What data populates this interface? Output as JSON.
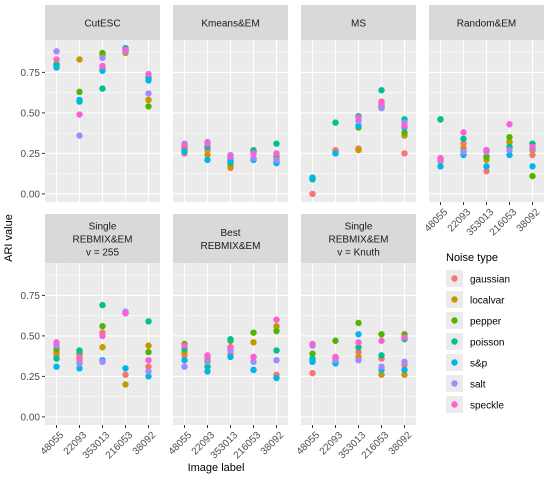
{
  "chart_data": {
    "type": "scatter",
    "layout": "faceted",
    "xlabel": "Image label",
    "ylabel": "ARI value",
    "categories": [
      "48055",
      "22093",
      "353013",
      "216053",
      "38092"
    ],
    "ylim": [
      0,
      1
    ],
    "yticks": [
      0.0,
      0.25,
      0.5,
      0.75
    ],
    "ytick_labels": [
      "0.00",
      "0.25",
      "0.50",
      "0.75"
    ],
    "grid": true,
    "legend": {
      "title": "Noise type",
      "placement": "right",
      "entries": [
        "gaussian",
        "localvar",
        "pepper",
        "poisson",
        "s&p",
        "salt",
        "speckle"
      ]
    },
    "colors": {
      "gaussian": "#F8766D",
      "localvar": "#C49A00",
      "pepper": "#53B400",
      "poisson": "#00C094",
      "s&p": "#00B6EB",
      "salt": "#A58AFF",
      "speckle": "#FB61D7",
      "panel_bg": "#EBEBEB",
      "strip_bg": "#D9D9D9",
      "grid": "#FFFFFF"
    },
    "facets": [
      {
        "title_lines": [
          "CutESC"
        ],
        "points": {
          "gaussian": [
            0.8,
            null,
            0.78,
            0.88,
            0.58
          ],
          "localvar": [
            null,
            0.83,
            0.86,
            0.87,
            0.58
          ],
          "pepper": [
            0.8,
            0.63,
            0.87,
            0.89,
            0.54
          ],
          "poisson": [
            0.79,
            0.57,
            0.65,
            0.9,
            0.72
          ],
          "s&p": [
            0.78,
            0.58,
            0.76,
            0.89,
            0.7
          ],
          "salt": [
            0.88,
            0.36,
            0.84,
            0.88,
            0.62
          ],
          "speckle": [
            0.83,
            0.49,
            0.79,
            0.89,
            0.74
          ]
        }
      },
      {
        "title_lines": [
          "Kmeans&EM"
        ],
        "points": {
          "gaussian": [
            0.25,
            0.27,
            0.16,
            0.21,
            0.2
          ],
          "localvar": [
            0.27,
            0.24,
            0.17,
            0.22,
            0.22
          ],
          "pepper": [
            0.29,
            0.29,
            0.19,
            0.26,
            0.23
          ],
          "poisson": [
            0.3,
            0.29,
            0.22,
            0.27,
            0.31
          ],
          "s&p": [
            0.26,
            0.21,
            0.2,
            0.21,
            0.19
          ],
          "salt": [
            0.31,
            0.32,
            0.24,
            0.22,
            0.21
          ],
          "speckle": [
            0.3,
            0.31,
            0.23,
            0.25,
            0.25
          ]
        }
      },
      {
        "title_lines": [
          "MS"
        ],
        "points": {
          "gaussian": [
            0.0,
            0.27,
            0.28,
            0.57,
            0.25
          ],
          "localvar": [
            null,
            null,
            0.27,
            0.55,
            0.36
          ],
          "pepper": [
            0.1,
            0.25,
            0.41,
            0.53,
            0.38
          ],
          "poisson": [
            0.09,
            0.44,
            0.48,
            0.64,
            0.46
          ],
          "s&p": [
            0.1,
            0.25,
            0.42,
            0.53,
            0.41
          ],
          "salt": [
            null,
            null,
            0.45,
            0.53,
            0.44
          ],
          "speckle": [
            null,
            null,
            0.47,
            0.56,
            0.42
          ]
        }
      },
      {
        "title_lines": [
          "Random&EM"
        ],
        "points": {
          "gaussian": [
            0.2,
            0.31,
            0.14,
            0.32,
            0.24
          ],
          "localvar": [
            0.22,
            0.28,
            0.21,
            0.32,
            0.27
          ],
          "pepper": [
            0.46,
            0.26,
            0.23,
            0.35,
            0.11
          ],
          "poisson": [
            0.46,
            0.34,
            0.27,
            0.29,
            0.31
          ],
          "s&p": [
            0.17,
            0.24,
            0.17,
            0.24,
            0.17
          ],
          "salt": [
            0.21,
            0.26,
            0.26,
            0.27,
            0.28
          ],
          "speckle": [
            0.22,
            0.38,
            0.27,
            0.43,
            0.29
          ]
        }
      },
      {
        "title_lines": [
          "Single",
          "REBMIX&EM",
          "v = 255"
        ],
        "points": {
          "gaussian": [
            0.38,
            0.36,
            0.52,
            0.26,
            0.31
          ],
          "localvar": [
            0.4,
            0.34,
            0.43,
            0.2,
            0.44
          ],
          "pepper": [
            0.42,
            0.39,
            0.56,
            0.64,
            0.4
          ],
          "poisson": [
            0.36,
            0.41,
            0.69,
            0.64,
            0.59
          ],
          "s&p": [
            0.31,
            0.3,
            0.35,
            0.3,
            0.25
          ],
          "salt": [
            0.44,
            0.33,
            0.34,
            0.65,
            0.28
          ],
          "speckle": [
            0.46,
            0.37,
            0.5,
            0.64,
            0.35
          ]
        }
      },
      {
        "title_lines": [
          "Best",
          "REBMIX&EM"
        ],
        "points": {
          "gaussian": [
            0.38,
            0.37,
            0.39,
            0.37,
            0.26
          ],
          "localvar": [
            0.4,
            0.35,
            0.43,
            0.46,
            0.56
          ],
          "pepper": [
            0.45,
            0.34,
            0.47,
            0.52,
            0.53
          ],
          "poisson": [
            0.42,
            0.31,
            0.48,
            0.29,
            0.41
          ],
          "s&p": [
            0.35,
            0.28,
            0.37,
            0.29,
            0.24
          ],
          "salt": [
            0.31,
            0.34,
            0.41,
            0.34,
            0.35
          ],
          "speckle": [
            0.44,
            0.38,
            0.43,
            0.37,
            0.6
          ]
        }
      },
      {
        "title_lines": [
          "Single",
          "REBMIX&EM",
          "v = Knuth"
        ],
        "points": {
          "gaussian": [
            0.27,
            0.37,
            0.4,
            0.36,
            0.32
          ],
          "localvar": [
            0.35,
            0.36,
            0.37,
            0.26,
            0.26
          ],
          "pepper": [
            0.39,
            0.47,
            0.58,
            0.51,
            0.51
          ],
          "poisson": [
            0.36,
            0.34,
            0.43,
            0.38,
            0.48
          ],
          "s&p": [
            0.34,
            0.33,
            0.51,
            0.29,
            0.29
          ],
          "salt": [
            0.44,
            0.35,
            0.35,
            0.31,
            0.34
          ],
          "speckle": [
            0.45,
            0.37,
            0.46,
            0.47,
            0.49
          ]
        }
      }
    ]
  }
}
